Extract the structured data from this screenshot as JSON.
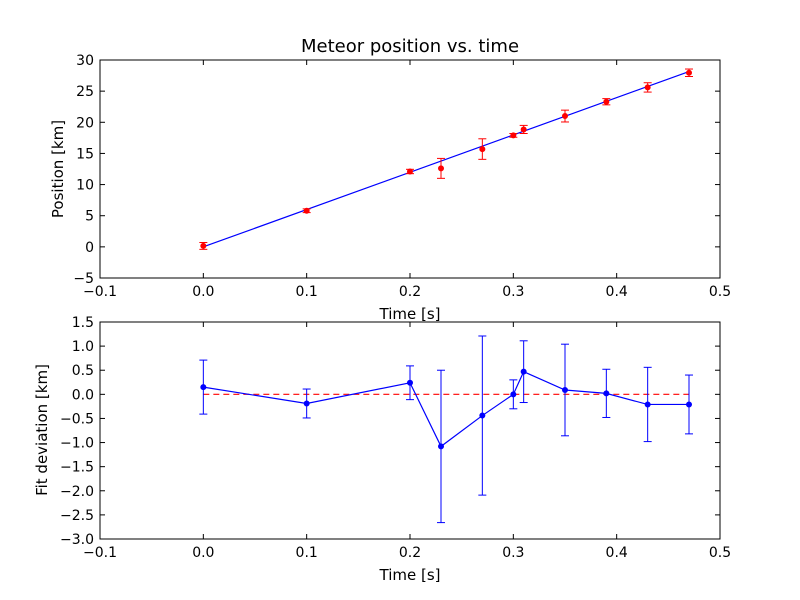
{
  "chart_data": [
    {
      "type": "scatter",
      "title": "Meteor position vs. time",
      "xlabel": "Time [s]",
      "ylabel": "Position [km]",
      "xlim": [
        -0.1,
        0.5
      ],
      "ylim": [
        -5,
        30
      ],
      "xticks": [
        "−0.1",
        "0.0",
        "0.1",
        "0.2",
        "0.3",
        "0.4",
        "0.5"
      ],
      "yticks": [
        "−5",
        "0",
        "5",
        "10",
        "15",
        "20",
        "25",
        "30"
      ],
      "grid": false,
      "colors": {
        "points": "#ff0000",
        "errorbars": "#ff0000",
        "fit_line": "#0000ff"
      },
      "series": [
        {
          "kind": "measurements-with-error",
          "x": [
            0.0,
            0.1,
            0.2,
            0.23,
            0.27,
            0.3,
            0.31,
            0.35,
            0.39,
            0.43,
            0.47
          ],
          "y": [
            0.15,
            5.8,
            12.1,
            12.6,
            15.7,
            17.9,
            18.85,
            21.0,
            23.3,
            25.6,
            27.95
          ],
          "yerr": [
            0.55,
            0.3,
            0.35,
            1.6,
            1.65,
            0.3,
            0.65,
            0.95,
            0.5,
            0.75,
            0.6
          ]
        },
        {
          "kind": "linear-fit",
          "x": [
            0.0,
            0.47
          ],
          "y": [
            0.0,
            28.15
          ]
        }
      ]
    },
    {
      "type": "line",
      "title": "",
      "xlabel": "Time [s]",
      "ylabel": "Fit deviation [km]",
      "xlim": [
        -0.1,
        0.5
      ],
      "ylim": [
        -3.0,
        1.5
      ],
      "xticks": [
        "−0.1",
        "0.0",
        "0.1",
        "0.2",
        "0.3",
        "0.4",
        "0.5"
      ],
      "yticks": [
        "−3.0",
        "−2.5",
        "−2.0",
        "−1.5",
        "−1.0",
        "−0.5",
        "0.0",
        "0.5",
        "1.0",
        "1.5"
      ],
      "grid": false,
      "colors": {
        "series": "#0000ff",
        "zero_line": "#ff0000"
      },
      "series": [
        {
          "kind": "residuals-with-error",
          "x": [
            0.0,
            0.1,
            0.2,
            0.23,
            0.27,
            0.3,
            0.31,
            0.35,
            0.39,
            0.43,
            0.47
          ],
          "y": [
            0.15,
            -0.19,
            0.24,
            -1.08,
            -0.44,
            0.0,
            0.47,
            0.09,
            0.02,
            -0.21,
            -0.21
          ],
          "yerr": [
            0.56,
            0.3,
            0.35,
            1.58,
            1.65,
            0.3,
            0.64,
            0.95,
            0.5,
            0.77,
            0.61
          ]
        },
        {
          "kind": "zero-reference",
          "x": [
            0.0,
            0.47
          ],
          "y": [
            0.0,
            0.0
          ]
        }
      ]
    }
  ]
}
